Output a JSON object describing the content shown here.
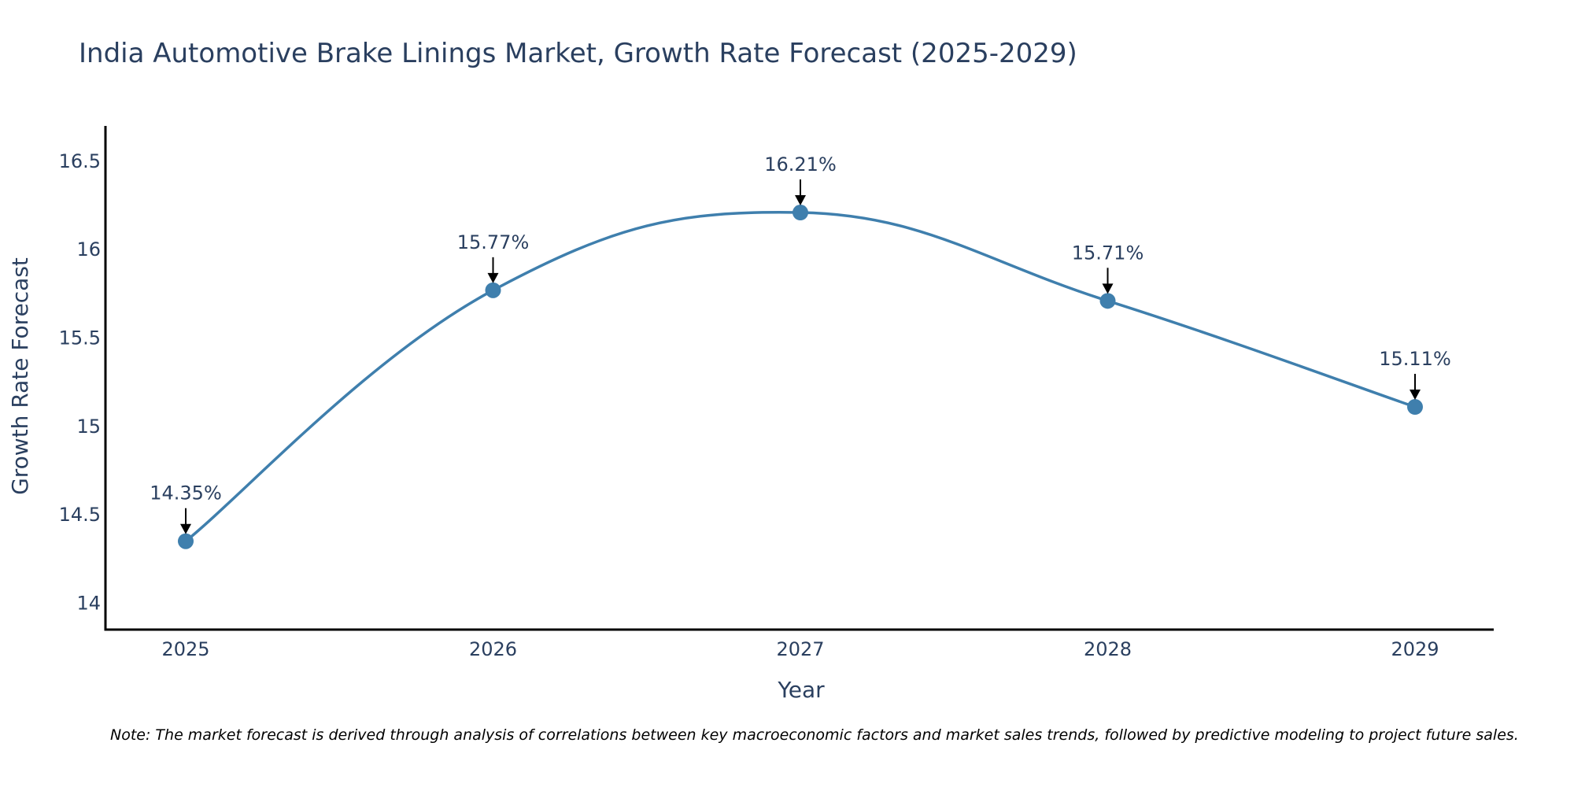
{
  "chart_data": {
    "type": "line",
    "title": "India Automotive Brake Linings Market, Growth Rate Forecast (2025-2029)",
    "xlabel": "Year",
    "ylabel": "Growth Rate Forecast",
    "categories": [
      "2025",
      "2026",
      "2027",
      "2028",
      "2029"
    ],
    "series": [
      {
        "name": "Growth Rate Forecast",
        "values": [
          14.35,
          15.77,
          16.21,
          15.71,
          15.11
        ],
        "labels": [
          "14.35%",
          "15.77%",
          "16.21%",
          "15.71%",
          "15.11%"
        ]
      }
    ],
    "yticks": [
      "14",
      "14.5",
      "15",
      "15.5",
      "16",
      "16.5"
    ],
    "ylim": [
      13.85,
      16.7
    ],
    "grid": false,
    "line_color": "#3f7fad",
    "marker_color": "#3f7fad",
    "axis_color": "#000000",
    "text_color": "#2a3f5f",
    "note": "Note: The market forecast is derived through analysis of correlations between key macroeconomic factors and market sales trends, followed by predictive modeling to project future sales."
  }
}
